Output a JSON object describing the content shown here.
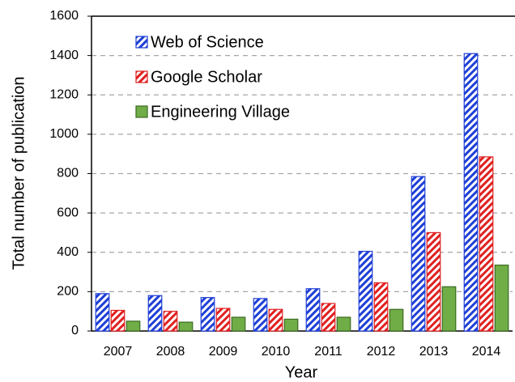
{
  "chart_data": {
    "type": "bar",
    "x_label": "Year",
    "y_label": "Total number of publication",
    "categories": [
      "2007",
      "2008",
      "2009",
      "2010",
      "2011",
      "2012",
      "2013",
      "2014"
    ],
    "series": [
      {
        "name": "Web of Science",
        "color": "#1f3fd6",
        "pattern": "hatch",
        "values": [
          190,
          180,
          170,
          165,
          215,
          405,
          785,
          1410
        ]
      },
      {
        "name": "Google Scholar",
        "color": "#e02020",
        "pattern": "hatch",
        "values": [
          105,
          100,
          115,
          110,
          140,
          245,
          500,
          885
        ]
      },
      {
        "name": "Engineering Village",
        "color": "#70ad47",
        "pattern": "solid",
        "values": [
          50,
          45,
          70,
          60,
          70,
          110,
          225,
          335
        ]
      }
    ],
    "ylim": [
      0,
      1600
    ],
    "yticks": [
      0,
      200,
      400,
      600,
      800,
      1000,
      1200,
      1400,
      1600
    ],
    "grid": true,
    "legend": "top-left"
  }
}
